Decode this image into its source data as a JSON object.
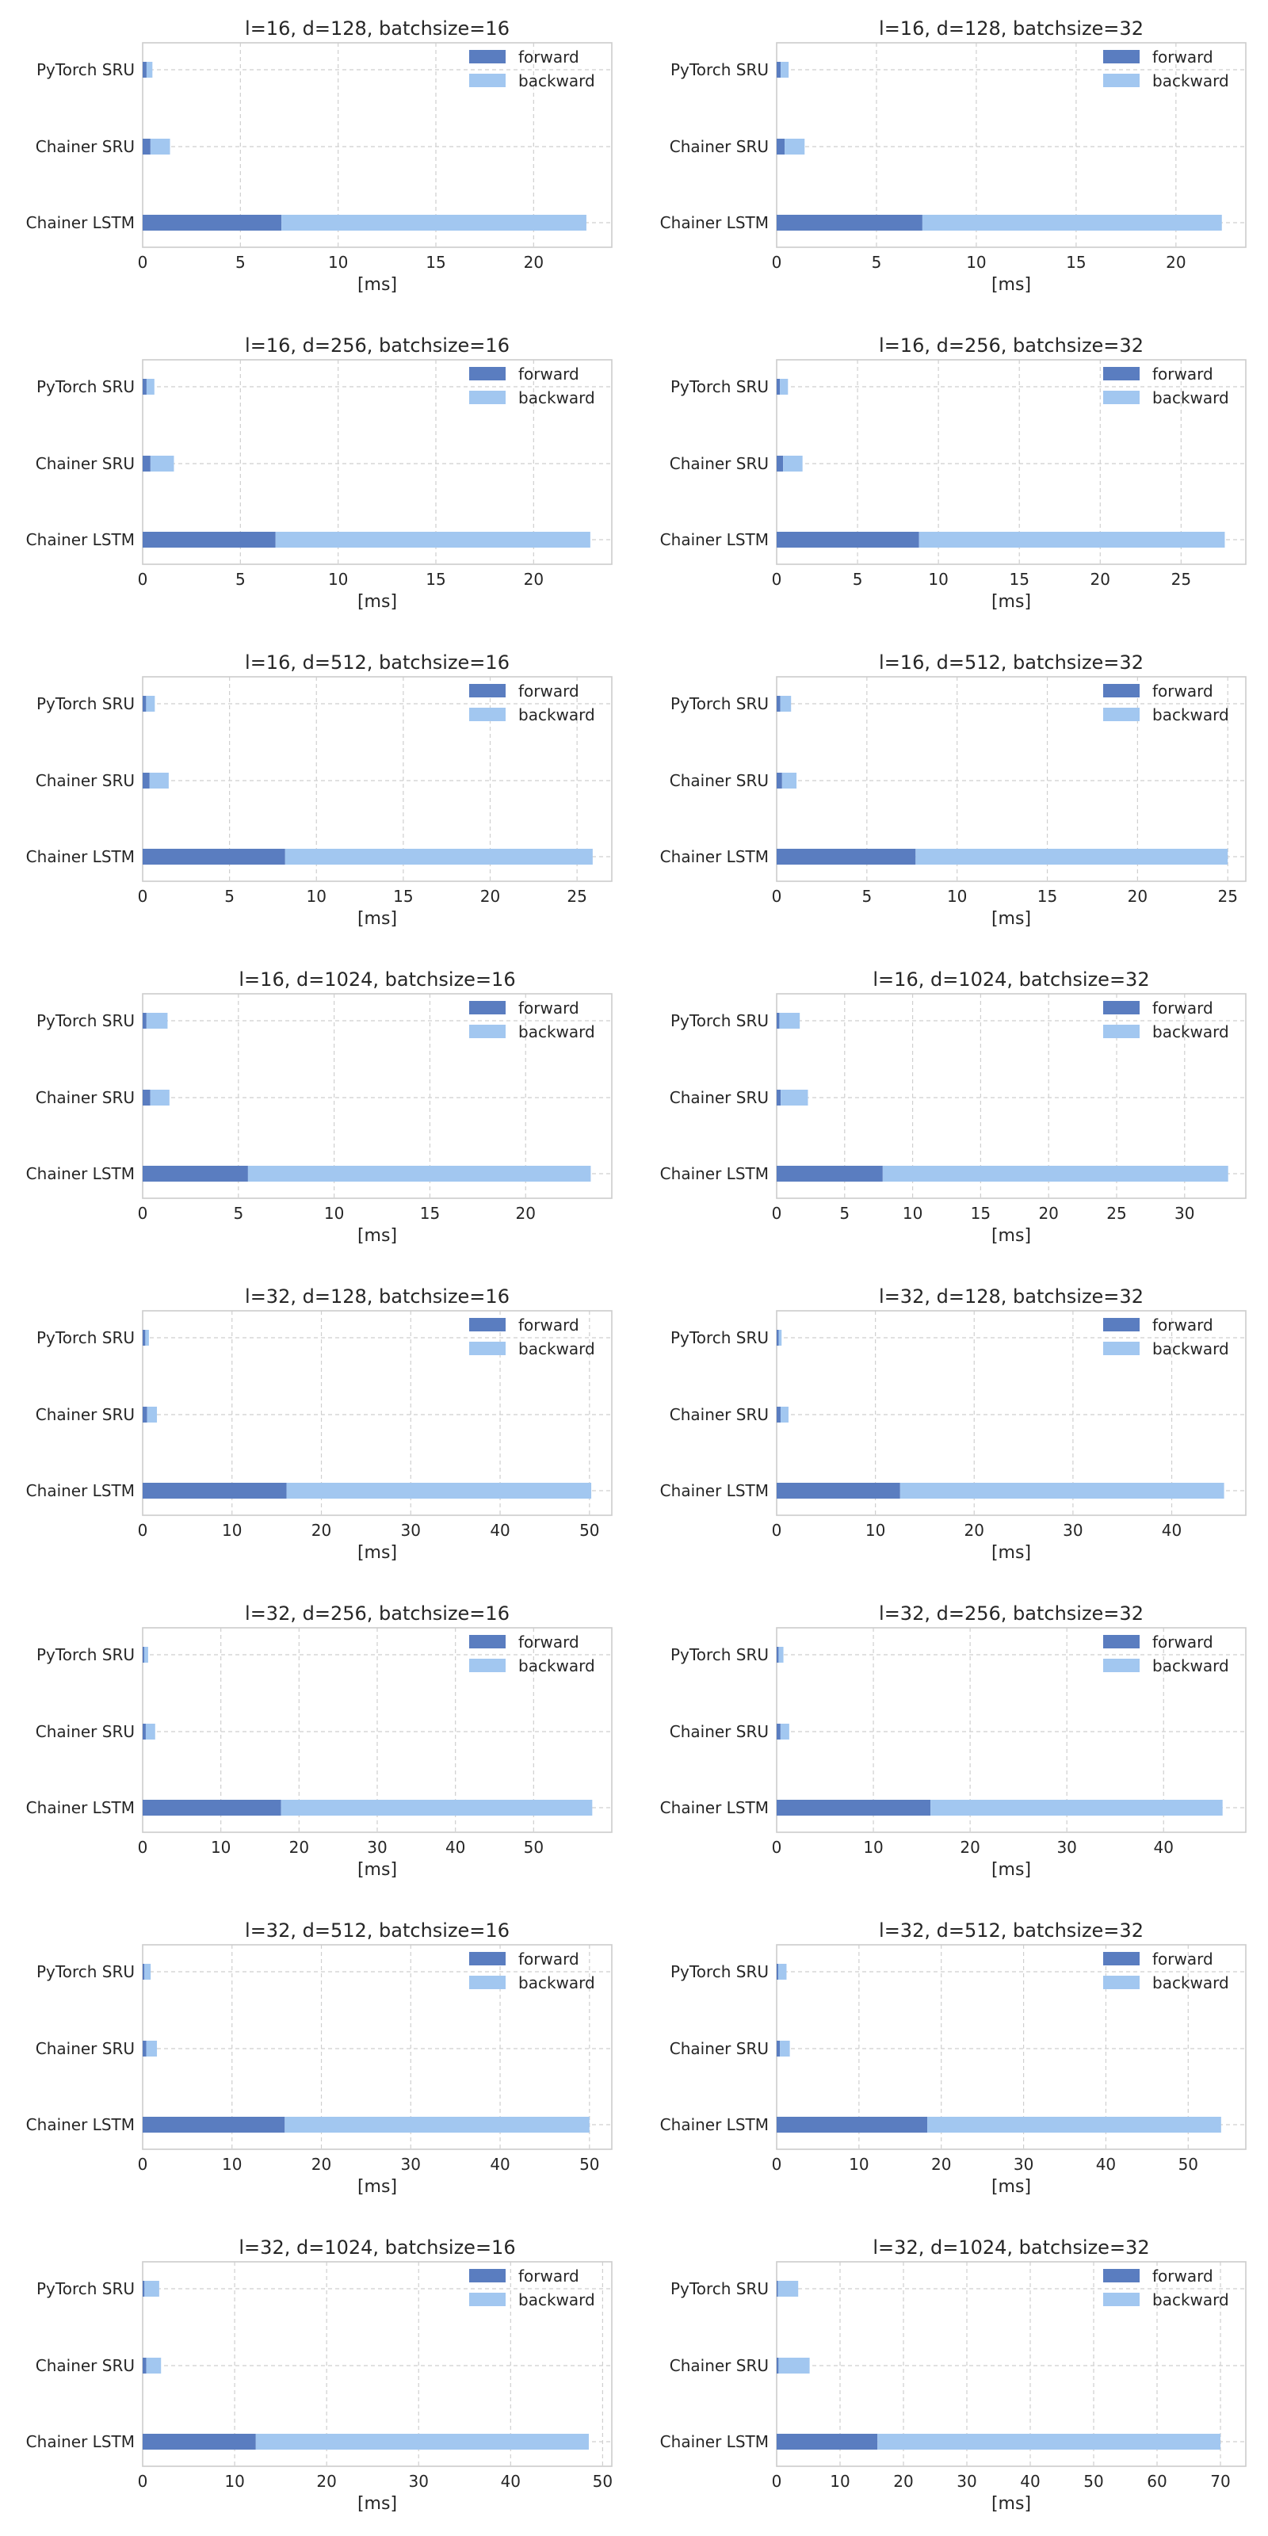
{
  "figure": {
    "xlabel": "[ms]",
    "categories": [
      "PyTorch SRU",
      "Chainer SRU",
      "Chainer LSTM"
    ],
    "legend": [
      "forward",
      "backward"
    ],
    "colors": {
      "forward": "#5a7dc0",
      "backward": "#a2c7f0",
      "grid": "#cfcfcf",
      "frame": "#cccccc",
      "text": "#262626"
    }
  },
  "chart_data": [
    {
      "type": "bar",
      "orientation": "horizontal",
      "stacked": true,
      "title": "l=16, d=128, batchsize=16",
      "xlabel": "[ms]",
      "categories": [
        "PyTorch SRU",
        "Chainer SRU",
        "Chainer LSTM"
      ],
      "series": [
        {
          "name": "forward",
          "values": [
            0.2,
            0.4,
            7.1
          ]
        },
        {
          "name": "backward",
          "values": [
            0.3,
            1.0,
            15.6
          ]
        }
      ],
      "xlim": [
        0,
        24
      ],
      "xticks": [
        0,
        5,
        10,
        15,
        20
      ],
      "legend_position": "top-right"
    },
    {
      "type": "bar",
      "orientation": "horizontal",
      "stacked": true,
      "title": "l=16, d=128, batchsize=32",
      "xlabel": "[ms]",
      "categories": [
        "PyTorch SRU",
        "Chainer SRU",
        "Chainer LSTM"
      ],
      "series": [
        {
          "name": "forward",
          "values": [
            0.2,
            0.4,
            7.3
          ]
        },
        {
          "name": "backward",
          "values": [
            0.4,
            1.0,
            15.0
          ]
        }
      ],
      "xlim": [
        0,
        23.5
      ],
      "xticks": [
        0,
        5,
        10,
        15,
        20
      ],
      "legend_position": "top-right"
    },
    {
      "type": "bar",
      "orientation": "horizontal",
      "stacked": true,
      "title": "l=16, d=256, batchsize=16",
      "xlabel": "[ms]",
      "categories": [
        "PyTorch SRU",
        "Chainer SRU",
        "Chainer LSTM"
      ],
      "series": [
        {
          "name": "forward",
          "values": [
            0.2,
            0.4,
            6.8
          ]
        },
        {
          "name": "backward",
          "values": [
            0.4,
            1.2,
            16.1
          ]
        }
      ],
      "xlim": [
        0,
        24
      ],
      "xticks": [
        0,
        5,
        10,
        15,
        20
      ],
      "legend_position": "top-right"
    },
    {
      "type": "bar",
      "orientation": "horizontal",
      "stacked": true,
      "title": "l=16, d=256, batchsize=32",
      "xlabel": "[ms]",
      "categories": [
        "PyTorch SRU",
        "Chainer SRU",
        "Chainer LSTM"
      ],
      "series": [
        {
          "name": "forward",
          "values": [
            0.2,
            0.4,
            8.8
          ]
        },
        {
          "name": "backward",
          "values": [
            0.5,
            1.2,
            18.9
          ]
        }
      ],
      "xlim": [
        0,
        29
      ],
      "xticks": [
        0,
        5,
        10,
        15,
        20,
        25
      ],
      "legend_position": "top-right"
    },
    {
      "type": "bar",
      "orientation": "horizontal",
      "stacked": true,
      "title": "l=16, d=512, batchsize=16",
      "xlabel": "[ms]",
      "categories": [
        "PyTorch SRU",
        "Chainer SRU",
        "Chainer LSTM"
      ],
      "series": [
        {
          "name": "forward",
          "values": [
            0.2,
            0.4,
            8.2
          ]
        },
        {
          "name": "backward",
          "values": [
            0.5,
            1.1,
            17.7
          ]
        }
      ],
      "xlim": [
        0,
        27
      ],
      "xticks": [
        0,
        5,
        10,
        15,
        20,
        25
      ],
      "legend_position": "top-right"
    },
    {
      "type": "bar",
      "orientation": "horizontal",
      "stacked": true,
      "title": "l=16, d=512, batchsize=32",
      "xlabel": "[ms]",
      "categories": [
        "PyTorch SRU",
        "Chainer SRU",
        "Chainer LSTM"
      ],
      "series": [
        {
          "name": "forward",
          "values": [
            0.2,
            0.3,
            7.7
          ]
        },
        {
          "name": "backward",
          "values": [
            0.6,
            0.8,
            17.3
          ]
        }
      ],
      "xlim": [
        0,
        26
      ],
      "xticks": [
        0,
        5,
        10,
        15,
        20,
        25
      ],
      "legend_position": "top-right"
    },
    {
      "type": "bar",
      "orientation": "horizontal",
      "stacked": true,
      "title": "l=16, d=1024, batchsize=16",
      "xlabel": "[ms]",
      "categories": [
        "PyTorch SRU",
        "Chainer SRU",
        "Chainer LSTM"
      ],
      "series": [
        {
          "name": "forward",
          "values": [
            0.2,
            0.4,
            5.5
          ]
        },
        {
          "name": "backward",
          "values": [
            1.1,
            1.0,
            17.9
          ]
        }
      ],
      "xlim": [
        0,
        24.5
      ],
      "xticks": [
        0,
        5,
        10,
        15,
        20
      ],
      "legend_position": "top-right"
    },
    {
      "type": "bar",
      "orientation": "horizontal",
      "stacked": true,
      "title": "l=16, d=1024, batchsize=32",
      "xlabel": "[ms]",
      "categories": [
        "PyTorch SRU",
        "Chainer SRU",
        "Chainer LSTM"
      ],
      "series": [
        {
          "name": "forward",
          "values": [
            0.2,
            0.3,
            7.8
          ]
        },
        {
          "name": "backward",
          "values": [
            1.5,
            2.0,
            25.4
          ]
        }
      ],
      "xlim": [
        0,
        34.5
      ],
      "xticks": [
        0,
        5,
        10,
        15,
        20,
        25,
        30
      ],
      "legend_position": "top-right"
    },
    {
      "type": "bar",
      "orientation": "horizontal",
      "stacked": true,
      "title": "l=32, d=128, batchsize=16",
      "xlabel": "[ms]",
      "categories": [
        "PyTorch SRU",
        "Chainer SRU",
        "Chainer LSTM"
      ],
      "series": [
        {
          "name": "forward",
          "values": [
            0.3,
            0.5,
            16.1
          ]
        },
        {
          "name": "backward",
          "values": [
            0.4,
            1.1,
            34.1
          ]
        }
      ],
      "xlim": [
        0,
        52.5
      ],
      "xticks": [
        0,
        10,
        20,
        30,
        40,
        50
      ],
      "legend_position": "top-right"
    },
    {
      "type": "bar",
      "orientation": "horizontal",
      "stacked": true,
      "title": "l=32, d=128, batchsize=32",
      "xlabel": "[ms]",
      "categories": [
        "PyTorch SRU",
        "Chainer SRU",
        "Chainer LSTM"
      ],
      "series": [
        {
          "name": "forward",
          "values": [
            0.2,
            0.4,
            12.5
          ]
        },
        {
          "name": "backward",
          "values": [
            0.3,
            0.8,
            32.8
          ]
        }
      ],
      "xlim": [
        0,
        47.5
      ],
      "xticks": [
        0,
        10,
        20,
        30,
        40
      ],
      "legend_position": "top-right"
    },
    {
      "type": "bar",
      "orientation": "horizontal",
      "stacked": true,
      "title": "l=32, d=256, batchsize=16",
      "xlabel": "[ms]",
      "categories": [
        "PyTorch SRU",
        "Chainer SRU",
        "Chainer LSTM"
      ],
      "series": [
        {
          "name": "forward",
          "values": [
            0.2,
            0.4,
            17.7
          ]
        },
        {
          "name": "backward",
          "values": [
            0.5,
            1.2,
            39.8
          ]
        }
      ],
      "xlim": [
        0,
        60
      ],
      "xticks": [
        0,
        10,
        20,
        30,
        40,
        50
      ],
      "legend_position": "top-right"
    },
    {
      "type": "bar",
      "orientation": "horizontal",
      "stacked": true,
      "title": "l=32, d=256, batchsize=32",
      "xlabel": "[ms]",
      "categories": [
        "PyTorch SRU",
        "Chainer SRU",
        "Chainer LSTM"
      ],
      "series": [
        {
          "name": "forward",
          "values": [
            0.2,
            0.4,
            15.9
          ]
        },
        {
          "name": "backward",
          "values": [
            0.5,
            0.9,
            30.2
          ]
        }
      ],
      "xlim": [
        0,
        48.5
      ],
      "xticks": [
        0,
        10,
        20,
        30,
        40
      ],
      "legend_position": "top-right"
    },
    {
      "type": "bar",
      "orientation": "horizontal",
      "stacked": true,
      "title": "l=32, d=512, batchsize=16",
      "xlabel": "[ms]",
      "categories": [
        "PyTorch SRU",
        "Chainer SRU",
        "Chainer LSTM"
      ],
      "series": [
        {
          "name": "forward",
          "values": [
            0.2,
            0.4,
            15.9
          ]
        },
        {
          "name": "backward",
          "values": [
            0.7,
            1.2,
            34.1
          ]
        }
      ],
      "xlim": [
        0,
        52.5
      ],
      "xticks": [
        0,
        10,
        20,
        30,
        40,
        50
      ],
      "legend_position": "top-right"
    },
    {
      "type": "bar",
      "orientation": "horizontal",
      "stacked": true,
      "title": "l=32, d=512, batchsize=32",
      "xlabel": "[ms]",
      "categories": [
        "PyTorch SRU",
        "Chainer SRU",
        "Chainer LSTM"
      ],
      "series": [
        {
          "name": "forward",
          "values": [
            0.2,
            0.4,
            18.3
          ]
        },
        {
          "name": "backward",
          "values": [
            1.0,
            1.2,
            35.7
          ]
        }
      ],
      "xlim": [
        0,
        57
      ],
      "xticks": [
        0,
        10,
        20,
        30,
        40,
        50
      ],
      "legend_position": "top-right"
    },
    {
      "type": "bar",
      "orientation": "horizontal",
      "stacked": true,
      "title": "l=32, d=1024, batchsize=16",
      "xlabel": "[ms]",
      "categories": [
        "PyTorch SRU",
        "Chainer SRU",
        "Chainer LSTM"
      ],
      "series": [
        {
          "name": "forward",
          "values": [
            0.2,
            0.4,
            12.3
          ]
        },
        {
          "name": "backward",
          "values": [
            1.6,
            1.6,
            36.2
          ]
        }
      ],
      "xlim": [
        0,
        51
      ],
      "xticks": [
        0,
        10,
        20,
        30,
        40,
        50
      ],
      "legend_position": "top-right"
    },
    {
      "type": "bar",
      "orientation": "horizontal",
      "stacked": true,
      "title": "l=32, d=1024, batchsize=32",
      "xlabel": "[ms]",
      "categories": [
        "PyTorch SRU",
        "Chainer SRU",
        "Chainer LSTM"
      ],
      "series": [
        {
          "name": "forward",
          "values": [
            0.2,
            0.3,
            15.9
          ]
        },
        {
          "name": "backward",
          "values": [
            3.2,
            4.9,
            54.1
          ]
        }
      ],
      "xlim": [
        0,
        74
      ],
      "xticks": [
        0,
        10,
        20,
        30,
        40,
        50,
        60,
        70
      ],
      "legend_position": "top-right"
    }
  ]
}
